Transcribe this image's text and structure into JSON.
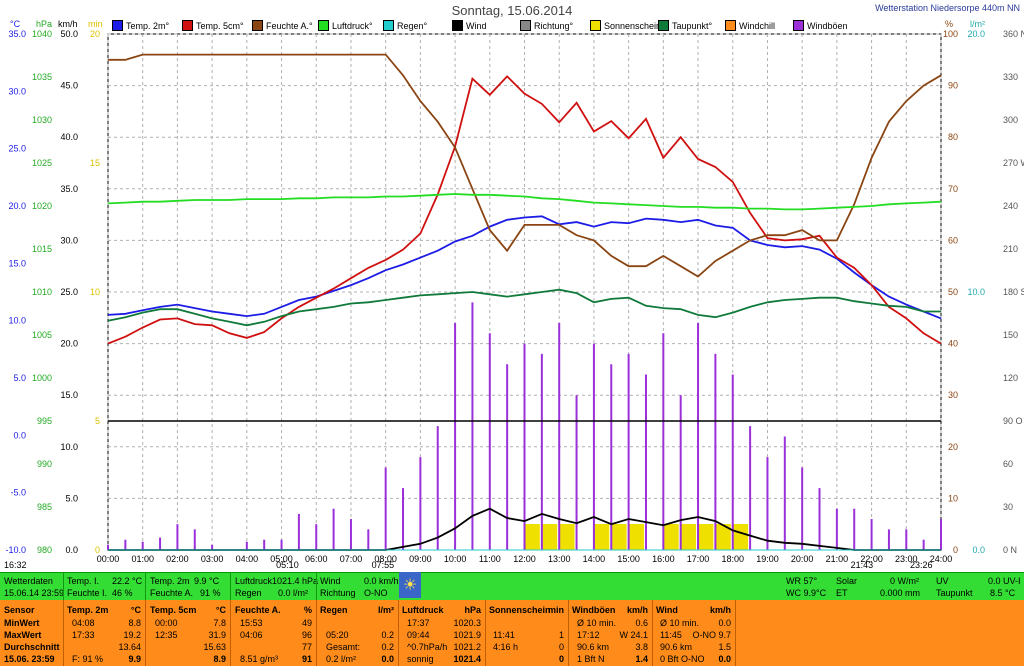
{
  "header": {
    "title": "Sonntag, 15.06.2014",
    "station": "Wetterstation Niedersorpe 440m NN"
  },
  "axis_units": {
    "temp": "°C",
    "hpa": "hPa",
    "kmh": "km/h",
    "min": "min",
    "pct": "%",
    "lm2": "l/m²"
  },
  "legend": [
    {
      "label": "Temp. 2m°",
      "color": "#1c1ce6"
    },
    {
      "label": "Temp. 5cm°",
      "color": "#d01010"
    },
    {
      "label": "Feuchte A.°",
      "color": "#8b4513"
    },
    {
      "label": "Luftdruck°",
      "color": "#22dd22"
    },
    {
      "label": "Regen°",
      "color": "#22cccc"
    },
    {
      "label": "Wind",
      "color": "#000000"
    },
    {
      "label": "Richtung°",
      "color": "#888888"
    },
    {
      "label": "Sonnenschein",
      "color": "#f0e000"
    },
    {
      "label": "Taupunkt°",
      "color": "#107a3a"
    },
    {
      "label": "Windchill",
      "color": "#ff8c1a"
    },
    {
      "label": "Windböen",
      "color": "#9b30d9"
    }
  ],
  "chart_data": {
    "type": "line",
    "title": "Sonntag, 15.06.2014",
    "x_ticks": [
      "00:00",
      "01:00",
      "02:00",
      "03:00",
      "04:00",
      "05:00",
      "06:00",
      "07:00",
      "08:00",
      "09:00",
      "10:00",
      "11:00",
      "12:00",
      "13:00",
      "14:00",
      "15:00",
      "16:00",
      "17:00",
      "18:00",
      "19:00",
      "20:00",
      "21:00",
      "22:00",
      "23:00",
      "24:00"
    ],
    "axes": {
      "temp": {
        "unit": "°C",
        "ticks": [
          "35.0",
          "30.0",
          "25.0",
          "20.0",
          "15.0",
          "10.0",
          "5.0",
          "0.0",
          "-5.0",
          "-10.0"
        ],
        "range": [
          -10,
          35
        ]
      },
      "hpa": {
        "unit": "hPa",
        "ticks": [
          "1040",
          "1035",
          "1030",
          "1025",
          "1020",
          "1015",
          "1010",
          "1005",
          "1000",
          "995",
          "990",
          "985",
          "980"
        ],
        "range": [
          980,
          1040
        ]
      },
      "kmh": {
        "unit": "km/h",
        "ticks": [
          "50.0",
          "45.0",
          "40.0",
          "35.0",
          "30.0",
          "25.0",
          "20.0",
          "15.0",
          "10.0",
          "5.0",
          "0.0"
        ],
        "range": [
          0,
          50
        ]
      },
      "min": {
        "unit": "min",
        "ticks": [
          "20",
          "15",
          "10",
          "5",
          "0"
        ],
        "range": [
          0,
          20
        ]
      },
      "pct": {
        "unit": "%",
        "ticks": [
          "100",
          "90",
          "80",
          "70",
          "60",
          "50",
          "40",
          "30",
          "20",
          "10",
          "0"
        ],
        "range": [
          0,
          100
        ]
      },
      "lm2": {
        "unit": "l/m²",
        "ticks": [
          "20.0",
          "10.0",
          "0.0"
        ],
        "range": [
          0,
          20
        ]
      },
      "dir": {
        "ticks": [
          "360 N",
          "330",
          "300",
          "270 W",
          "240",
          "210",
          "180 S",
          "150",
          "120",
          "90 O",
          "60",
          "30",
          "0 N"
        ],
        "range": [
          0,
          360
        ]
      }
    },
    "x": [
      0,
      0.5,
      1,
      1.5,
      2,
      2.5,
      3,
      3.5,
      4,
      4.5,
      5,
      5.5,
      6,
      6.5,
      7,
      7.5,
      8,
      8.5,
      9,
      9.5,
      10,
      10.5,
      11,
      11.5,
      12,
      12.5,
      13,
      13.5,
      14,
      14.5,
      15,
      15.5,
      16,
      16.5,
      17,
      17.5,
      18,
      18.5,
      19,
      19.5,
      20,
      20.5,
      21,
      21.5,
      22,
      22.5,
      23,
      23.5,
      24
    ],
    "series": [
      {
        "name": "Temp. 2m°",
        "axis": "temp",
        "color": "#1c1ce6",
        "values": [
          10.5,
          10.6,
          10.9,
          11.2,
          11.4,
          11.1,
          10.8,
          10.6,
          10.4,
          10.6,
          11.2,
          11.8,
          12.1,
          12.6,
          13.1,
          13.7,
          14.4,
          14.9,
          15.5,
          16.1,
          16.9,
          17.4,
          18.2,
          18.8,
          19.0,
          19.1,
          18.4,
          18.6,
          18.2,
          18.6,
          18.5,
          18.9,
          18.8,
          18.6,
          18.8,
          18.3,
          18.1,
          17.0,
          16.6,
          16.4,
          16.5,
          16.2,
          15.4,
          14.2,
          13.1,
          12.1,
          11.4,
          10.8,
          10.2
        ]
      },
      {
        "name": "Temp. 5cm°",
        "axis": "temp",
        "color": "#d01010",
        "values": [
          8.0,
          8.6,
          9.4,
          10.1,
          10.2,
          9.7,
          9.6,
          8.9,
          8.5,
          9.0,
          10.2,
          11.2,
          12.0,
          12.8,
          13.7,
          14.6,
          15.3,
          16.2,
          17.6,
          21.0,
          25.2,
          31.1,
          29.7,
          31.3,
          29.8,
          28.9,
          27.3,
          29.0,
          26.5,
          27.4,
          25.9,
          27.6,
          24.2,
          26.0,
          24.1,
          23.4,
          22.1,
          19.4,
          17.2,
          17.0,
          17.1,
          17.4,
          15.5,
          14.6,
          13.1,
          11.2,
          10.2,
          8.9,
          8.0
        ]
      },
      {
        "name": "Feuchte A.°",
        "axis": "pct",
        "color": "#8b4513",
        "values": [
          95,
          95,
          96,
          96,
          96,
          96,
          96,
          96,
          96,
          96,
          96,
          96,
          96,
          96,
          96,
          96,
          96,
          92,
          87,
          83,
          78,
          70,
          62,
          58,
          63,
          63,
          63,
          61,
          60,
          57,
          55,
          55,
          57,
          55,
          53,
          56,
          58,
          60,
          61,
          61,
          62,
          60,
          60,
          67,
          76,
          83,
          87,
          90,
          92
        ]
      },
      {
        "name": "Luftdruck°",
        "axis": "hpa",
        "color": "#22dd22",
        "values": [
          1020.3,
          1020.4,
          1020.5,
          1020.5,
          1020.6,
          1020.7,
          1020.7,
          1020.7,
          1020.8,
          1020.8,
          1020.8,
          1020.9,
          1020.9,
          1021.0,
          1021.0,
          1021.0,
          1021.1,
          1021.1,
          1021.2,
          1021.3,
          1021.4,
          1021.3,
          1021.3,
          1021.2,
          1021.1,
          1020.9,
          1020.8,
          1020.6,
          1020.4,
          1020.3,
          1020.2,
          1020.1,
          1020.0,
          1019.9,
          1019.9,
          1019.8,
          1019.8,
          1019.7,
          1019.7,
          1019.6,
          1019.6,
          1019.7,
          1019.8,
          1019.9,
          1020.0,
          1020.2,
          1020.3,
          1020.4,
          1020.5
        ]
      },
      {
        "name": "Taupunkt°",
        "axis": "temp",
        "color": "#107a3a",
        "values": [
          10.0,
          10.3,
          10.7,
          11.0,
          11.0,
          10.6,
          10.2,
          9.9,
          9.6,
          9.9,
          10.4,
          10.8,
          11.0,
          11.2,
          11.5,
          11.6,
          11.8,
          12.0,
          12.2,
          12.3,
          12.4,
          12.5,
          12.3,
          12.1,
          12.3,
          12.5,
          12.7,
          12.4,
          11.6,
          11.9,
          12.0,
          11.3,
          11.1,
          11.0,
          10.5,
          10.3,
          10.7,
          11.2,
          11.6,
          11.8,
          11.9,
          12.0,
          12.0,
          11.7,
          11.5,
          11.3,
          11.2,
          10.8,
          10.8
        ]
      },
      {
        "name": "Wind",
        "axis": "kmh",
        "color": "#000000",
        "values": [
          0,
          0,
          0,
          0,
          0,
          0,
          0,
          0,
          0,
          0,
          0,
          0,
          0,
          0,
          0,
          0,
          0,
          0.3,
          0.6,
          1.2,
          2.1,
          3.3,
          4.0,
          3.1,
          2.8,
          3.5,
          3.0,
          2.6,
          3.2,
          2.5,
          3.0,
          2.7,
          2.4,
          2.9,
          3.2,
          2.8,
          1.9,
          1.4,
          0.9,
          0.7,
          0.6,
          0.4,
          0.2,
          0,
          0,
          0,
          0,
          0,
          0
        ]
      },
      {
        "name": "Windböen",
        "axis": "kmh",
        "color": "#9b30d9",
        "values": [
          0.5,
          1,
          0.8,
          1.2,
          2.5,
          2,
          0.5,
          0,
          0.8,
          1,
          1,
          3.5,
          2.5,
          4,
          3,
          2,
          8,
          6,
          9,
          12,
          22,
          24,
          21,
          18,
          20,
          19,
          22,
          15,
          20,
          18,
          19,
          17,
          21,
          15,
          22,
          19,
          17,
          12,
          9,
          11,
          8,
          6,
          4,
          4,
          3,
          2,
          2,
          1,
          3
        ]
      },
      {
        "name": "Regen°",
        "axis": "lm2",
        "color": "#22cccc",
        "values": [
          0,
          0,
          0,
          0,
          0,
          0,
          0,
          0,
          0,
          0,
          0,
          0,
          0,
          0,
          0,
          0,
          0,
          0,
          0,
          0,
          0,
          0,
          0,
          0,
          0,
          0,
          0,
          0,
          0,
          0,
          0,
          0,
          0,
          0,
          0,
          0,
          0,
          0,
          0,
          0,
          0,
          0,
          0,
          0,
          0,
          0,
          0,
          0,
          0
        ]
      },
      {
        "name": "Sonnenschein",
        "axis": "min",
        "color": "#f0e000",
        "values": [
          0,
          0,
          0,
          0,
          0,
          0,
          0,
          0,
          0,
          0,
          0,
          0,
          0,
          0,
          0,
          0,
          0,
          0,
          0,
          0,
          0,
          0,
          0,
          0,
          1,
          1,
          1,
          0,
          1,
          1,
          1,
          0,
          1,
          1,
          1,
          1,
          1,
          0,
          0,
          0,
          0,
          0,
          0,
          0,
          0,
          0,
          0,
          0,
          0
        ]
      }
    ],
    "wind_direction_level_deg": 90,
    "events": {
      "sunrise": "05:10",
      "sunset": "21:43",
      "tmin_time": "07:55",
      "tmax_time": "23:26",
      "left_time": "16:32"
    },
    "grid": true
  },
  "green_bar": {
    "label_weather": "Wetterdaten",
    "label_date": "15.06.14 23:59",
    "temp_i_label": "Temp. I.",
    "temp_i_val": "22.2 °C",
    "feuchte_i_label": "Feuchte I.",
    "feuchte_i_val": "46 %",
    "temp2_label": "Temp. 2m",
    "temp2_val": "9.9 °C",
    "feuchte_a_label": "Feuchte A.",
    "feuchte_a_val": "91 %",
    "luftdruck_label": "Luftdruck",
    "luftdruck_val": "1021.4 hPa",
    "regen_label": "Regen",
    "regen_val": "0.0 l/m²",
    "wind_label": "Wind",
    "wind_val": "0.0 km/h",
    "richtung_label": "Richtung",
    "richtung_val": "O-NO",
    "wr_label": "WR 57°",
    "wc_label": "WC 9.9°C",
    "solar_label": "Solar",
    "solar_val": "0 W/m²",
    "et_label": "ET",
    "et_val": "0.000 mm",
    "uv_label": "UV",
    "uv_val": "0.0 UV-I",
    "taupunkt_label": "Taupunkt",
    "taupunkt_val": "8.5 °C"
  },
  "table": {
    "headers": {
      "sensor": "Sensor",
      "temp2": "Temp. 2m",
      "temp2_u": "°C",
      "temp5": "Temp. 5cm",
      "temp5_u": "°C",
      "feuchte": "Feuchte A.",
      "feuchte_u": "%",
      "regen": "Regen",
      "regen_u": "l/m²",
      "luft": "Luftdruck",
      "luft_u": "hPa",
      "sonne": "Sonnenschein",
      "sonne_u": "min",
      "boeen": "Windböen",
      "boeen_u": "km/h",
      "wind": "Wind",
      "wind_u": "km/h"
    },
    "rows": [
      {
        "label": "MinWert",
        "t2_time": "04:08",
        "t2_val": "8.8",
        "t5_time": "00:00",
        "t5_val": "7.8",
        "fe_time": "15:53",
        "fe_val": "49",
        "rg_time": "",
        "rg_val": "",
        "lu_time": "17:37",
        "lu_val": "1020.3",
        "so_time": "",
        "so_val": "",
        "bo_time": "Ø 10 min.",
        "bo_val": "0.6",
        "wi_time": "Ø 10 min.",
        "wi_val": "0.0"
      },
      {
        "label": "MaxWert",
        "t2_time": "17:33",
        "t2_val": "19.2",
        "t5_time": "12:35",
        "t5_val": "31.9",
        "fe_time": "04:06",
        "fe_val": "96",
        "rg_time": "05:20",
        "rg_val": "0.2",
        "lu_time": "09:44",
        "lu_val": "1021.9",
        "so_time": "11:41",
        "so_val": "1",
        "bo_time": "17:12",
        "bo_mid": "W 24.1",
        "wi_time": "11:45",
        "wi_mid": "O-NO 9.7"
      },
      {
        "label": "Durchschnitt",
        "t2_time": "",
        "t2_val": "13.64",
        "t5_time": "",
        "t5_val": "15.63",
        "fe_time": "",
        "fe_val": "77",
        "rg_time": "Gesamt:",
        "rg_val": "0.2",
        "lu_time": "^0.7hPa/h",
        "lu_val": "1021.2",
        "so_time": "4:16 h",
        "so_val": "0",
        "bo_time": "90.6 km",
        "bo_val": "3.8",
        "wi_time": "90.6 km",
        "wi_val": "1.5"
      },
      {
        "label": "15.06. 23:59",
        "t2_time": "F: 91 %",
        "t2_val": "9.9",
        "t5_time": "",
        "t5_val": "8.9",
        "fe_time": "8.51 g/m³",
        "fe_val": "91",
        "rg_time": "0.2 l/m²",
        "rg_val": "0.0",
        "lu_time": "sonnig",
        "lu_val": "1021.4",
        "so_time": "",
        "so_val": "0",
        "bo_time": "1 Bft N",
        "bo_val": "1.4",
        "wi_time": "0 Bft O-NO",
        "wi_val": "0.0"
      }
    ]
  }
}
